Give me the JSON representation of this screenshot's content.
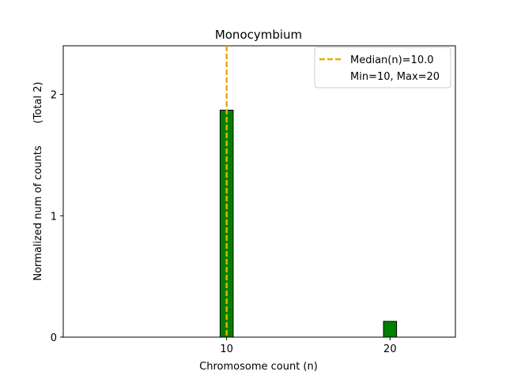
{
  "chart_data": {
    "type": "bar",
    "title": "Monocymbium",
    "xlabel": "Chromosome count (n)",
    "ylabel": "Normalized num of counts",
    "ylabel_right": "(Total 2)",
    "xlim": [
      0,
      24
    ],
    "ylim": [
      0,
      2.4
    ],
    "x_ticks": [
      10,
      20
    ],
    "y_ticks": [
      0,
      1,
      2
    ],
    "bar_width": 0.8,
    "bar_color": "#008000",
    "bar_edge_color": "#000000",
    "bars": [
      {
        "x": 10,
        "value": 1.87
      },
      {
        "x": 20,
        "value": 0.13
      }
    ],
    "median_line": {
      "x": 10,
      "color": "#f0a800",
      "style": "dashed"
    },
    "legend": {
      "position": "top-right",
      "entries": [
        "Median(n)=10.0",
        "Min=10, Max=20"
      ]
    },
    "grid": false
  }
}
